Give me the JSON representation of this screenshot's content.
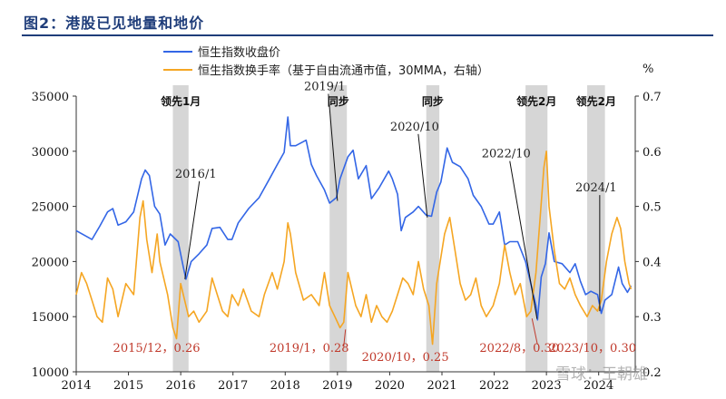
{
  "header": {
    "title": "图2：港股已见地量和地价"
  },
  "chart_data": {
    "type": "line",
    "legend": [
      "恒生指数收盘价",
      "恒生指数换手率（基于自由流通市值，30MMA，右轴）"
    ],
    "series": [
      {
        "name": "恒生指数收盘价",
        "axis": "left",
        "color": "#3366e6",
        "points": [
          [
            2014.0,
            22800
          ],
          [
            2014.15,
            22400
          ],
          [
            2014.3,
            22000
          ],
          [
            2014.45,
            23200
          ],
          [
            2014.6,
            24500
          ],
          [
            2014.7,
            24800
          ],
          [
            2014.8,
            23300
          ],
          [
            2014.95,
            23600
          ],
          [
            2015.1,
            24500
          ],
          [
            2015.25,
            27500
          ],
          [
            2015.32,
            28300
          ],
          [
            2015.4,
            27800
          ],
          [
            2015.5,
            25000
          ],
          [
            2015.6,
            24300
          ],
          [
            2015.7,
            21500
          ],
          [
            2015.8,
            22500
          ],
          [
            2015.95,
            21800
          ],
          [
            2016.05,
            19500
          ],
          [
            2016.1,
            18400
          ],
          [
            2016.2,
            20000
          ],
          [
            2016.35,
            20700
          ],
          [
            2016.5,
            21500
          ],
          [
            2016.6,
            23000
          ],
          [
            2016.75,
            23100
          ],
          [
            2016.9,
            22000
          ],
          [
            2016.98,
            22000
          ],
          [
            2017.1,
            23500
          ],
          [
            2017.3,
            24800
          ],
          [
            2017.5,
            25800
          ],
          [
            2017.7,
            27500
          ],
          [
            2017.85,
            28800
          ],
          [
            2017.98,
            29900
          ],
          [
            2018.05,
            33100
          ],
          [
            2018.1,
            30500
          ],
          [
            2018.2,
            30500
          ],
          [
            2018.4,
            31000
          ],
          [
            2018.5,
            28800
          ],
          [
            2018.6,
            27800
          ],
          [
            2018.75,
            26500
          ],
          [
            2018.85,
            25300
          ],
          [
            2018.98,
            25800
          ],
          [
            2019.05,
            27500
          ],
          [
            2019.2,
            29500
          ],
          [
            2019.3,
            30100
          ],
          [
            2019.4,
            27500
          ],
          [
            2019.55,
            28700
          ],
          [
            2019.65,
            25700
          ],
          [
            2019.8,
            26700
          ],
          [
            2019.98,
            28200
          ],
          [
            2020.05,
            27500
          ],
          [
            2020.15,
            26100
          ],
          [
            2020.22,
            22800
          ],
          [
            2020.3,
            24000
          ],
          [
            2020.45,
            24500
          ],
          [
            2020.55,
            25000
          ],
          [
            2020.7,
            24200
          ],
          [
            2020.8,
            24100
          ],
          [
            2020.9,
            26300
          ],
          [
            2020.98,
            27200
          ],
          [
            2021.1,
            30300
          ],
          [
            2021.2,
            29000
          ],
          [
            2021.35,
            28600
          ],
          [
            2021.5,
            27500
          ],
          [
            2021.6,
            26000
          ],
          [
            2021.75,
            25000
          ],
          [
            2021.9,
            23400
          ],
          [
            2021.98,
            23400
          ],
          [
            2022.1,
            24500
          ],
          [
            2022.2,
            21500
          ],
          [
            2022.3,
            21800
          ],
          [
            2022.45,
            21800
          ],
          [
            2022.6,
            20000
          ],
          [
            2022.7,
            18000
          ],
          [
            2022.8,
            16000
          ],
          [
            2022.83,
            14700
          ],
          [
            2022.9,
            18600
          ],
          [
            2022.98,
            19800
          ],
          [
            2023.05,
            22600
          ],
          [
            2023.15,
            20000
          ],
          [
            2023.3,
            19800
          ],
          [
            2023.45,
            19000
          ],
          [
            2023.55,
            19800
          ],
          [
            2023.65,
            18200
          ],
          [
            2023.75,
            17000
          ],
          [
            2023.85,
            17300
          ],
          [
            2023.98,
            17000
          ],
          [
            2024.05,
            15300
          ],
          [
            2024.12,
            16500
          ],
          [
            2024.25,
            17000
          ],
          [
            2024.38,
            19500
          ],
          [
            2024.45,
            18000
          ],
          [
            2024.55,
            17200
          ],
          [
            2024.62,
            17800
          ]
        ]
      },
      {
        "name": "恒生指数换手率（基于自由流通市值，30MMA，右轴）",
        "axis": "right",
        "color": "#f5a623",
        "points": [
          [
            2014.0,
            0.34
          ],
          [
            2014.1,
            0.38
          ],
          [
            2014.2,
            0.36
          ],
          [
            2014.3,
            0.33
          ],
          [
            2014.4,
            0.3
          ],
          [
            2014.5,
            0.29
          ],
          [
            2014.6,
            0.37
          ],
          [
            2014.7,
            0.35
          ],
          [
            2014.8,
            0.3
          ],
          [
            2014.95,
            0.36
          ],
          [
            2015.1,
            0.34
          ],
          [
            2015.22,
            0.48
          ],
          [
            2015.28,
            0.51
          ],
          [
            2015.35,
            0.44
          ],
          [
            2015.45,
            0.38
          ],
          [
            2015.55,
            0.45
          ],
          [
            2015.6,
            0.4
          ],
          [
            2015.75,
            0.34
          ],
          [
            2015.85,
            0.28
          ],
          [
            2015.92,
            0.26
          ],
          [
            2016.0,
            0.36
          ],
          [
            2016.05,
            0.34
          ],
          [
            2016.15,
            0.3
          ],
          [
            2016.25,
            0.31
          ],
          [
            2016.35,
            0.29
          ],
          [
            2016.5,
            0.31
          ],
          [
            2016.6,
            0.37
          ],
          [
            2016.7,
            0.34
          ],
          [
            2016.8,
            0.31
          ],
          [
            2016.9,
            0.3
          ],
          [
            2016.98,
            0.34
          ],
          [
            2017.1,
            0.32
          ],
          [
            2017.2,
            0.35
          ],
          [
            2017.35,
            0.31
          ],
          [
            2017.5,
            0.3
          ],
          [
            2017.6,
            0.34
          ],
          [
            2017.75,
            0.38
          ],
          [
            2017.85,
            0.35
          ],
          [
            2017.98,
            0.4
          ],
          [
            2018.05,
            0.47
          ],
          [
            2018.1,
            0.45
          ],
          [
            2018.2,
            0.38
          ],
          [
            2018.35,
            0.33
          ],
          [
            2018.5,
            0.34
          ],
          [
            2018.65,
            0.32
          ],
          [
            2018.75,
            0.38
          ],
          [
            2018.85,
            0.32
          ],
          [
            2018.95,
            0.3
          ],
          [
            2019.05,
            0.28
          ],
          [
            2019.12,
            0.29
          ],
          [
            2019.2,
            0.38
          ],
          [
            2019.35,
            0.32
          ],
          [
            2019.45,
            0.3
          ],
          [
            2019.55,
            0.34
          ],
          [
            2019.65,
            0.29
          ],
          [
            2019.75,
            0.32
          ],
          [
            2019.85,
            0.3
          ],
          [
            2019.95,
            0.29
          ],
          [
            2020.05,
            0.31
          ],
          [
            2020.15,
            0.34
          ],
          [
            2020.25,
            0.37
          ],
          [
            2020.35,
            0.36
          ],
          [
            2020.45,
            0.34
          ],
          [
            2020.55,
            0.4
          ],
          [
            2020.65,
            0.35
          ],
          [
            2020.75,
            0.32
          ],
          [
            2020.82,
            0.25
          ],
          [
            2020.9,
            0.36
          ],
          [
            2021.05,
            0.45
          ],
          [
            2021.15,
            0.48
          ],
          [
            2021.25,
            0.42
          ],
          [
            2021.35,
            0.36
          ],
          [
            2021.45,
            0.33
          ],
          [
            2021.55,
            0.34
          ],
          [
            2021.65,
            0.37
          ],
          [
            2021.75,
            0.32
          ],
          [
            2021.85,
            0.3
          ],
          [
            2021.98,
            0.32
          ],
          [
            2022.1,
            0.36
          ],
          [
            2022.2,
            0.43
          ],
          [
            2022.3,
            0.38
          ],
          [
            2022.4,
            0.34
          ],
          [
            2022.5,
            0.36
          ],
          [
            2022.62,
            0.3
          ],
          [
            2022.7,
            0.31
          ],
          [
            2022.8,
            0.38
          ],
          [
            2022.88,
            0.48
          ],
          [
            2022.95,
            0.57
          ],
          [
            2023.0,
            0.6
          ],
          [
            2023.05,
            0.5
          ],
          [
            2023.15,
            0.42
          ],
          [
            2023.25,
            0.36
          ],
          [
            2023.35,
            0.35
          ],
          [
            2023.45,
            0.37
          ],
          [
            2023.55,
            0.34
          ],
          [
            2023.65,
            0.32
          ],
          [
            2023.78,
            0.3
          ],
          [
            2023.88,
            0.32
          ],
          [
            2023.98,
            0.31
          ],
          [
            2024.05,
            0.33
          ],
          [
            2024.15,
            0.4
          ],
          [
            2024.25,
            0.45
          ],
          [
            2024.35,
            0.48
          ],
          [
            2024.42,
            0.46
          ],
          [
            2024.5,
            0.4
          ],
          [
            2024.58,
            0.36
          ],
          [
            2024.62,
            0.35
          ]
        ]
      }
    ],
    "xlim": [
      2014,
      2024.7
    ],
    "x_ticks": [
      "2014",
      "2015",
      "2016",
      "2017",
      "2018",
      "2019",
      "2020",
      "2021",
      "2022",
      "2023",
      "2024"
    ],
    "y_left_lim": [
      10000,
      35000
    ],
    "y_left_ticks": [
      "10000",
      "15000",
      "20000",
      "25000",
      "30000",
      "35000"
    ],
    "y_right_lim": [
      0.2,
      0.7
    ],
    "y_right_ticks": [
      "0.2",
      "0.3",
      "0.4",
      "0.5",
      "0.6",
      "0.7"
    ],
    "y_right_unit": "%",
    "shaded_periods": [
      {
        "label": "领先1月",
        "start": 2015.85,
        "end": 2016.15
      },
      {
        "label": "同步",
        "start": 2018.85,
        "end": 2019.18
      },
      {
        "label": "同步",
        "start": 2020.7,
        "end": 2020.95
      },
      {
        "label": "领先2月",
        "start": 2022.6,
        "end": 2023.02
      },
      {
        "label": "领先2月",
        "start": 2023.78,
        "end": 2024.12
      }
    ],
    "annotations": [
      {
        "text": "2016/1",
        "x": 2016.08,
        "y": 18400,
        "axis": "left"
      },
      {
        "text": "2019/1",
        "x": 2019.0,
        "y": 25500,
        "axis": "left"
      },
      {
        "text": "2020/10",
        "x": 2020.72,
        "y": 24000,
        "axis": "left"
      },
      {
        "text": "2022/10",
        "x": 2022.82,
        "y": 14800,
        "axis": "left"
      },
      {
        "text": "2024/1",
        "x": 2024.02,
        "y": 15500,
        "axis": "left"
      }
    ],
    "low_labels": [
      {
        "text": "2015/12，0.26",
        "x": 2015.92,
        "y": 0.26
      },
      {
        "text": "2019/1，0.28",
        "x": 2019.05,
        "y": 0.28
      },
      {
        "text": "2020/10，0.25",
        "x": 2020.82,
        "y": 0.25
      },
      {
        "text": "2022/8，0.30",
        "x": 2022.62,
        "y": 0.3
      },
      {
        "text": "2023/10，0.30",
        "x": 2023.78,
        "y": 0.3
      }
    ]
  },
  "watermark": "雪球：王朝雄"
}
